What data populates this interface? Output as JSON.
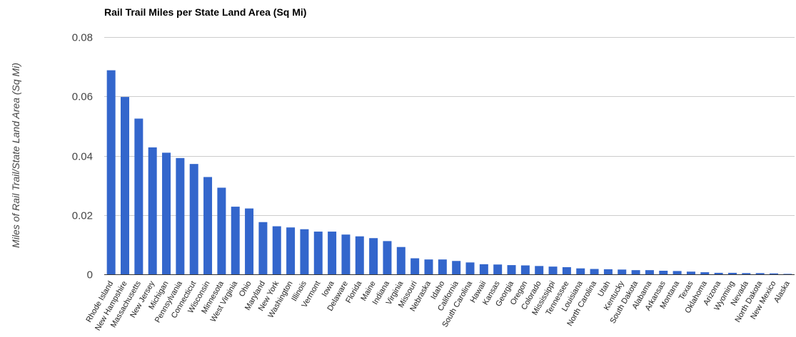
{
  "chart_data": {
    "type": "bar",
    "title": "Rail Trail Miles per State Land Area (Sq Mi)",
    "xlabel": "",
    "ylabel": "Miles of Rail Trail/State Land Area (Sq Mi)",
    "ylim": [
      0,
      0.08
    ],
    "yticks": [
      "0",
      "0.02",
      "0.04",
      "0.06",
      "0.08"
    ],
    "ytick_values": [
      0,
      0.02,
      0.04,
      0.06,
      0.08
    ],
    "grid": true,
    "legend": "none",
    "categories": [
      "Rhode Island",
      "New Hampshire",
      "Massachusetts",
      "New Jersey",
      "Michigan",
      "Pennsylvania",
      "Connecticut",
      "Wisconsin",
      "Minnesota",
      "West Virginia",
      "Ohio",
      "Maryland",
      "New York",
      "Washington",
      "Illinois",
      "Vermont",
      "Iowa",
      "Delaware",
      "Florida",
      "Maine",
      "Indiana",
      "Virginia",
      "Missouri",
      "Nebraska",
      "Idaho",
      "California",
      "South Carolina",
      "Hawaii",
      "Kansas",
      "Georgia",
      "Oregon",
      "Colorado",
      "Mississippi",
      "Tennessee",
      "Louisiana",
      "North Carolina",
      "Utah",
      "Kentucky",
      "South Dakota",
      "Alabama",
      "Arkansas",
      "Montana",
      "Texas",
      "Oklahoma",
      "Arizona",
      "Wyoming",
      "Nevada",
      "North Dakota",
      "New Mexico",
      "Alaska"
    ],
    "values": [
      0.0688,
      0.0598,
      0.0525,
      0.0428,
      0.041,
      0.0392,
      0.0372,
      0.0328,
      0.0292,
      0.0228,
      0.0222,
      0.0176,
      0.0162,
      0.0158,
      0.0152,
      0.0144,
      0.0144,
      0.0134,
      0.0128,
      0.0122,
      0.0112,
      0.0092,
      0.0054,
      0.005,
      0.005,
      0.0045,
      0.004,
      0.0034,
      0.0033,
      0.0031,
      0.003,
      0.0028,
      0.0026,
      0.0024,
      0.002,
      0.0018,
      0.0017,
      0.0016,
      0.0014,
      0.0014,
      0.0012,
      0.0011,
      0.0009,
      0.0007,
      0.0005,
      0.0005,
      0.0004,
      0.0004,
      0.0003,
      0.0001
    ],
    "colors": {
      "bar": "#3366cc",
      "grid": "#cccccc",
      "baseline": "#333333",
      "tick_label": "#444444",
      "category_label": "#222222"
    }
  }
}
